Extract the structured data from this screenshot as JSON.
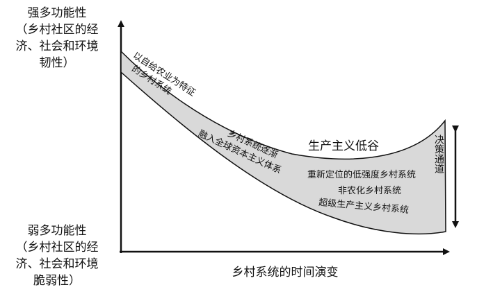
{
  "y_axis": {
    "top_label_lines": [
      "强多功能性",
      "（乡村社区的经",
      "济、社会和环境",
      "韧性）"
    ],
    "bottom_label_lines": [
      "弱多功能性",
      "（乡村社区的经",
      "济、社会和环境",
      "脆弱性）"
    ]
  },
  "x_axis": {
    "label": "乡村系统的时间演变"
  },
  "band": {
    "start_label_lines": [
      "以自给农业为特征",
      "的乡村系统"
    ],
    "mid_label_lines": [
      "乡村系统逐渐",
      "融入全球资本主义体系"
    ],
    "valley_label": "生产主义低谷",
    "pathway_1": "重新定位的低强度乡村系统",
    "pathway_2": "非农化乡村系统",
    "pathway_3": "超级生产主义乡村系统"
  },
  "side_label": "决策通道",
  "colors": {
    "band_fill": "#d9d9d9",
    "stroke": "#111111"
  }
}
